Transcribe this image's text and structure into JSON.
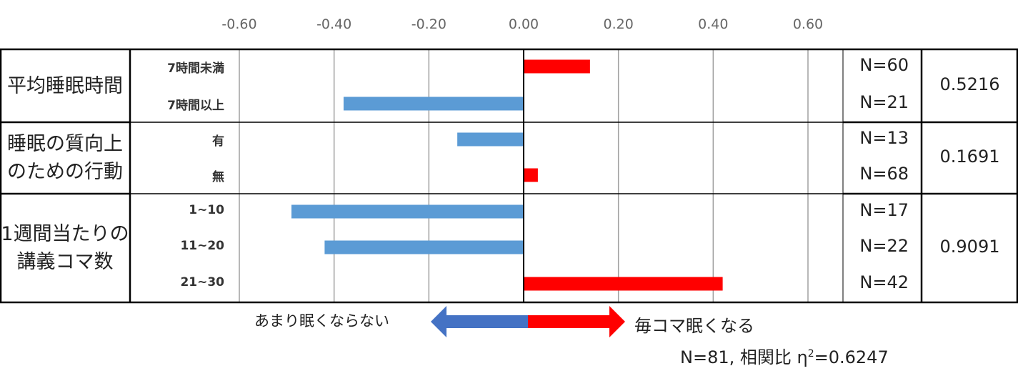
{
  "chart_data": {
    "type": "bar",
    "orientation": "horizontal",
    "xlim": [
      -0.6,
      0.6
    ],
    "x_ticks": [
      "-0.60",
      "-0.40",
      "-0.20",
      "0.00",
      "0.20",
      "0.40",
      "0.60"
    ],
    "x_tick_values": [
      -0.6,
      -0.4,
      -0.2,
      0.0,
      0.2,
      0.4,
      0.6
    ],
    "grid": true,
    "colors": {
      "positive": "#ff0000",
      "negative": "#5b9bd5"
    },
    "groups": [
      {
        "label_lines": [
          "平均睡眠時間"
        ],
        "ratio": "0.5216",
        "rows": [
          {
            "category": "7時間未満",
            "value": 0.14,
            "n": "N=60"
          },
          {
            "category": "7時間以上",
            "value": -0.38,
            "n": "N=21"
          }
        ]
      },
      {
        "label_lines": [
          "睡眠の質向上",
          "のための行動"
        ],
        "ratio": "0.1691",
        "rows": [
          {
            "category": "有",
            "value": -0.14,
            "n": "N=13"
          },
          {
            "category": "無",
            "value": 0.03,
            "n": "N=68"
          }
        ]
      },
      {
        "label_lines": [
          "1週間当たりの",
          "講義コマ数"
        ],
        "ratio": "0.9091",
        "rows": [
          {
            "category": "1~10",
            "value": -0.49,
            "n": "N=17"
          },
          {
            "category": "11~20",
            "value": -0.42,
            "n": "N=22"
          },
          {
            "category": "21~30",
            "value": 0.42,
            "n": "N=42"
          }
        ]
      }
    ],
    "annotations": {
      "left": "あまり眠くならない",
      "right": "毎コマ眠くなる",
      "stats_text": "N=81, 相関比 η",
      "stats_sup": "2",
      "stats_value": "=0.6247"
    }
  }
}
